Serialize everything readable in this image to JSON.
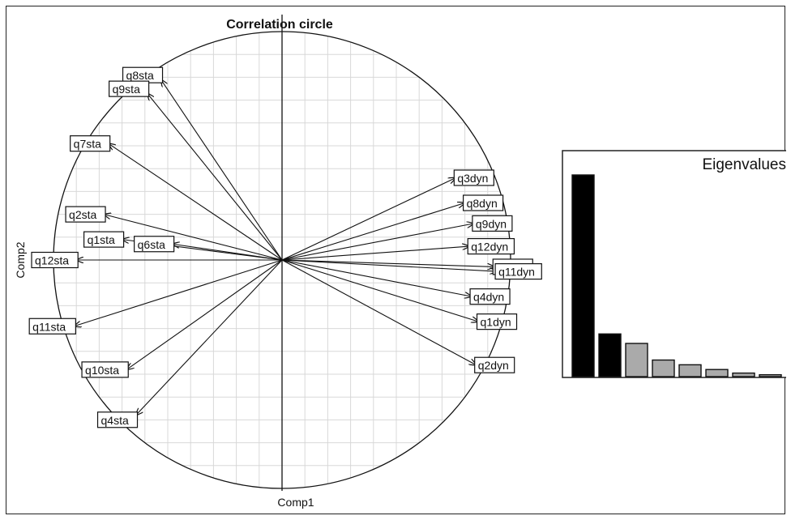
{
  "chart_data": [
    {
      "type": "scatter",
      "subtype": "correlation-circle",
      "title": "Correlation circle",
      "xlabel": "Comp1",
      "ylabel": "Comp2",
      "xlim": [
        -1,
        1
      ],
      "ylim": [
        -1,
        1
      ],
      "grid": true,
      "variables": [
        {
          "name": "q8sta",
          "x": -0.53,
          "y": 0.79
        },
        {
          "name": "q9sta",
          "x": -0.59,
          "y": 0.73
        },
        {
          "name": "q7sta",
          "x": -0.76,
          "y": 0.51
        },
        {
          "name": "q2sta",
          "x": -0.78,
          "y": 0.2
        },
        {
          "name": "q1sta",
          "x": -0.7,
          "y": 0.09
        },
        {
          "name": "q6sta",
          "x": -0.48,
          "y": 0.07
        },
        {
          "name": "q12sta",
          "x": -0.9,
          "y": 0.0
        },
        {
          "name": "q11sta",
          "x": -0.91,
          "y": -0.29
        },
        {
          "name": "q10sta",
          "x": -0.68,
          "y": -0.48
        },
        {
          "name": "q4sta",
          "x": -0.64,
          "y": -0.68
        },
        {
          "name": "q3dyn",
          "x": 0.76,
          "y": 0.36
        },
        {
          "name": "q8dyn",
          "x": 0.8,
          "y": 0.25
        },
        {
          "name": "q9dyn",
          "x": 0.84,
          "y": 0.16
        },
        {
          "name": "q12dyn",
          "x": 0.82,
          "y": 0.06
        },
        {
          "name": "q5dyn",
          "x": 0.93,
          "y": -0.03
        },
        {
          "name": "q11dyn",
          "x": 0.94,
          "y": -0.05
        },
        {
          "name": "q4dyn",
          "x": 0.83,
          "y": -0.16
        },
        {
          "name": "q1dyn",
          "x": 0.86,
          "y": -0.27
        },
        {
          "name": "q2dyn",
          "x": 0.85,
          "y": -0.46
        }
      ]
    },
    {
      "type": "bar",
      "title": "Eigenvalues",
      "categories": [
        "1",
        "2",
        "3",
        "4",
        "5",
        "6",
        "7",
        "8"
      ],
      "values": [
        8.5,
        1.8,
        1.4,
        0.7,
        0.5,
        0.3,
        0.15,
        0.08
      ],
      "bar_colors": [
        "#000000",
        "#000000",
        "#aaaaaa",
        "#aaaaaa",
        "#aaaaaa",
        "#aaaaaa",
        "#aaaaaa",
        "#aaaaaa"
      ]
    }
  ]
}
